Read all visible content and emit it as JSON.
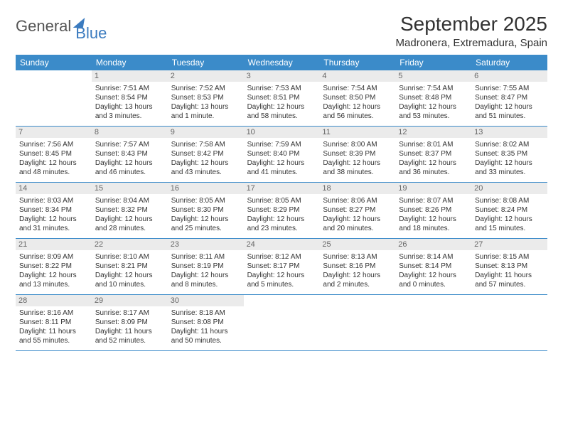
{
  "logo": {
    "part1": "General",
    "part2": "Blue"
  },
  "title": "September 2025",
  "location": "Madronera, Extremadura, Spain",
  "weekdays": [
    "Sunday",
    "Monday",
    "Tuesday",
    "Wednesday",
    "Thursday",
    "Friday",
    "Saturday"
  ],
  "colors": {
    "header_bg": "#3b8bc9",
    "header_fg": "#ffffff",
    "daynum_bg": "#ebebeb",
    "daynum_fg": "#666666",
    "rule": "#3b8bc9",
    "logo_blue": "#3b7bbf",
    "text": "#333333",
    "page_bg": "#ffffff"
  },
  "weeks": [
    [
      {
        "num": "",
        "lines": []
      },
      {
        "num": "1",
        "lines": [
          "Sunrise: 7:51 AM",
          "Sunset: 8:54 PM",
          "Daylight: 13 hours",
          "and 3 minutes."
        ]
      },
      {
        "num": "2",
        "lines": [
          "Sunrise: 7:52 AM",
          "Sunset: 8:53 PM",
          "Daylight: 13 hours",
          "and 1 minute."
        ]
      },
      {
        "num": "3",
        "lines": [
          "Sunrise: 7:53 AM",
          "Sunset: 8:51 PM",
          "Daylight: 12 hours",
          "and 58 minutes."
        ]
      },
      {
        "num": "4",
        "lines": [
          "Sunrise: 7:54 AM",
          "Sunset: 8:50 PM",
          "Daylight: 12 hours",
          "and 56 minutes."
        ]
      },
      {
        "num": "5",
        "lines": [
          "Sunrise: 7:54 AM",
          "Sunset: 8:48 PM",
          "Daylight: 12 hours",
          "and 53 minutes."
        ]
      },
      {
        "num": "6",
        "lines": [
          "Sunrise: 7:55 AM",
          "Sunset: 8:47 PM",
          "Daylight: 12 hours",
          "and 51 minutes."
        ]
      }
    ],
    [
      {
        "num": "7",
        "lines": [
          "Sunrise: 7:56 AM",
          "Sunset: 8:45 PM",
          "Daylight: 12 hours",
          "and 48 minutes."
        ]
      },
      {
        "num": "8",
        "lines": [
          "Sunrise: 7:57 AM",
          "Sunset: 8:43 PM",
          "Daylight: 12 hours",
          "and 46 minutes."
        ]
      },
      {
        "num": "9",
        "lines": [
          "Sunrise: 7:58 AM",
          "Sunset: 8:42 PM",
          "Daylight: 12 hours",
          "and 43 minutes."
        ]
      },
      {
        "num": "10",
        "lines": [
          "Sunrise: 7:59 AM",
          "Sunset: 8:40 PM",
          "Daylight: 12 hours",
          "and 41 minutes."
        ]
      },
      {
        "num": "11",
        "lines": [
          "Sunrise: 8:00 AM",
          "Sunset: 8:39 PM",
          "Daylight: 12 hours",
          "and 38 minutes."
        ]
      },
      {
        "num": "12",
        "lines": [
          "Sunrise: 8:01 AM",
          "Sunset: 8:37 PM",
          "Daylight: 12 hours",
          "and 36 minutes."
        ]
      },
      {
        "num": "13",
        "lines": [
          "Sunrise: 8:02 AM",
          "Sunset: 8:35 PM",
          "Daylight: 12 hours",
          "and 33 minutes."
        ]
      }
    ],
    [
      {
        "num": "14",
        "lines": [
          "Sunrise: 8:03 AM",
          "Sunset: 8:34 PM",
          "Daylight: 12 hours",
          "and 31 minutes."
        ]
      },
      {
        "num": "15",
        "lines": [
          "Sunrise: 8:04 AM",
          "Sunset: 8:32 PM",
          "Daylight: 12 hours",
          "and 28 minutes."
        ]
      },
      {
        "num": "16",
        "lines": [
          "Sunrise: 8:05 AM",
          "Sunset: 8:30 PM",
          "Daylight: 12 hours",
          "and 25 minutes."
        ]
      },
      {
        "num": "17",
        "lines": [
          "Sunrise: 8:05 AM",
          "Sunset: 8:29 PM",
          "Daylight: 12 hours",
          "and 23 minutes."
        ]
      },
      {
        "num": "18",
        "lines": [
          "Sunrise: 8:06 AM",
          "Sunset: 8:27 PM",
          "Daylight: 12 hours",
          "and 20 minutes."
        ]
      },
      {
        "num": "19",
        "lines": [
          "Sunrise: 8:07 AM",
          "Sunset: 8:26 PM",
          "Daylight: 12 hours",
          "and 18 minutes."
        ]
      },
      {
        "num": "20",
        "lines": [
          "Sunrise: 8:08 AM",
          "Sunset: 8:24 PM",
          "Daylight: 12 hours",
          "and 15 minutes."
        ]
      }
    ],
    [
      {
        "num": "21",
        "lines": [
          "Sunrise: 8:09 AM",
          "Sunset: 8:22 PM",
          "Daylight: 12 hours",
          "and 13 minutes."
        ]
      },
      {
        "num": "22",
        "lines": [
          "Sunrise: 8:10 AM",
          "Sunset: 8:21 PM",
          "Daylight: 12 hours",
          "and 10 minutes."
        ]
      },
      {
        "num": "23",
        "lines": [
          "Sunrise: 8:11 AM",
          "Sunset: 8:19 PM",
          "Daylight: 12 hours",
          "and 8 minutes."
        ]
      },
      {
        "num": "24",
        "lines": [
          "Sunrise: 8:12 AM",
          "Sunset: 8:17 PM",
          "Daylight: 12 hours",
          "and 5 minutes."
        ]
      },
      {
        "num": "25",
        "lines": [
          "Sunrise: 8:13 AM",
          "Sunset: 8:16 PM",
          "Daylight: 12 hours",
          "and 2 minutes."
        ]
      },
      {
        "num": "26",
        "lines": [
          "Sunrise: 8:14 AM",
          "Sunset: 8:14 PM",
          "Daylight: 12 hours",
          "and 0 minutes."
        ]
      },
      {
        "num": "27",
        "lines": [
          "Sunrise: 8:15 AM",
          "Sunset: 8:13 PM",
          "Daylight: 11 hours",
          "and 57 minutes."
        ]
      }
    ],
    [
      {
        "num": "28",
        "lines": [
          "Sunrise: 8:16 AM",
          "Sunset: 8:11 PM",
          "Daylight: 11 hours",
          "and 55 minutes."
        ]
      },
      {
        "num": "29",
        "lines": [
          "Sunrise: 8:17 AM",
          "Sunset: 8:09 PM",
          "Daylight: 11 hours",
          "and 52 minutes."
        ]
      },
      {
        "num": "30",
        "lines": [
          "Sunrise: 8:18 AM",
          "Sunset: 8:08 PM",
          "Daylight: 11 hours",
          "and 50 minutes."
        ]
      },
      {
        "num": "",
        "lines": []
      },
      {
        "num": "",
        "lines": []
      },
      {
        "num": "",
        "lines": []
      },
      {
        "num": "",
        "lines": []
      }
    ]
  ]
}
